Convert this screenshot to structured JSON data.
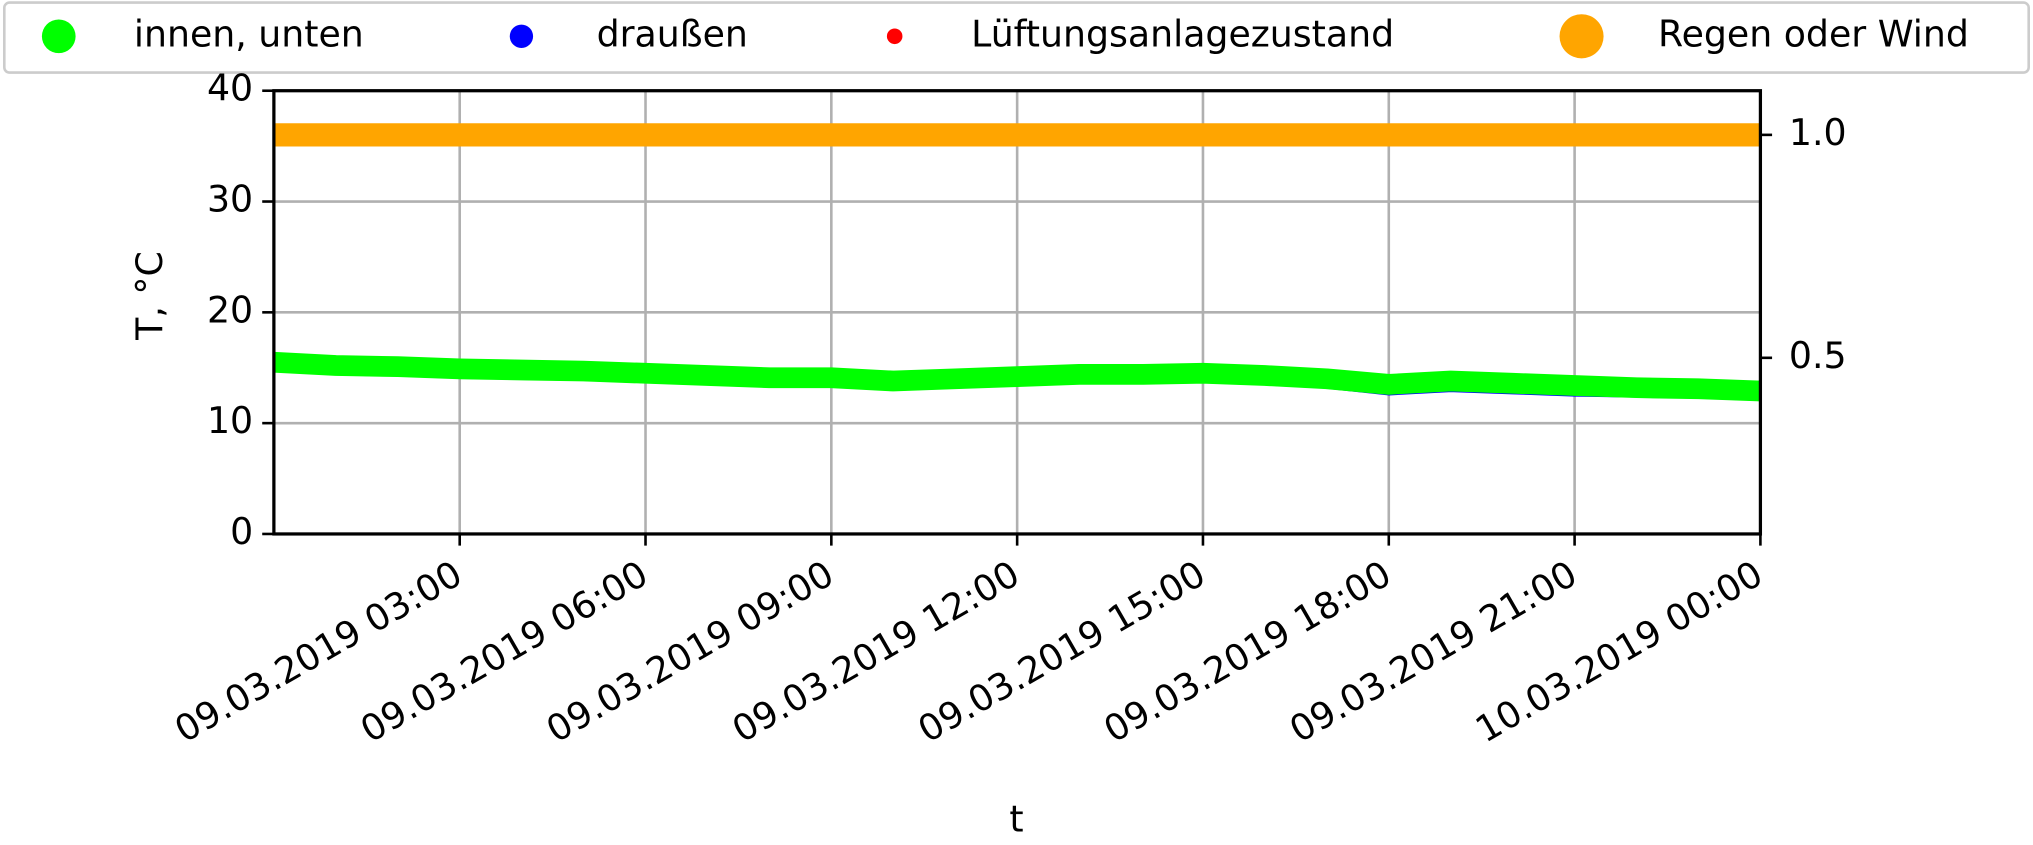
{
  "chart_data": {
    "type": "line",
    "legend": "top",
    "grid": true,
    "ylabel": "T, °C",
    "xlabel": "t",
    "x": [
      "09.03.2019 00:00",
      "09.03.2019 01:00",
      "09.03.2019 02:00",
      "09.03.2019 03:00",
      "09.03.2019 04:00",
      "09.03.2019 05:00",
      "09.03.2019 06:00",
      "09.03.2019 07:00",
      "09.03.2019 08:00",
      "09.03.2019 09:00",
      "09.03.2019 10:00",
      "09.03.2019 11:00",
      "09.03.2019 12:00",
      "09.03.2019 13:00",
      "09.03.2019 14:00",
      "09.03.2019 15:00",
      "09.03.2019 16:00",
      "09.03.2019 17:00",
      "09.03.2019 18:00",
      "09.03.2019 19:00",
      "09.03.2019 20:00",
      "09.03.2019 21:00",
      "09.03.2019 22:00",
      "09.03.2019 23:00",
      "10.03.2019 00:00"
    ],
    "series": [
      {
        "name": "innen, unten",
        "color": "#00ff00",
        "values": [
          15.5,
          15.2,
          15.1,
          14.9,
          14.8,
          14.7,
          14.5,
          14.3,
          14.1,
          14.1,
          13.8,
          14.0,
          14.2,
          14.4,
          14.4,
          14.5,
          14.3,
          14.0,
          13.5,
          13.8,
          13.6,
          13.4,
          13.2,
          13.1,
          12.9
        ]
      },
      {
        "name": "draußen",
        "color": "#0000ff",
        "values": [
          15.3,
          15.0,
          14.9,
          14.7,
          14.6,
          14.5,
          14.3,
          14.1,
          13.9,
          13.9,
          13.6,
          13.8,
          14.0,
          14.2,
          14.2,
          14.3,
          14.1,
          13.8,
          13.2,
          13.5,
          13.3,
          13.1,
          13.0,
          12.9,
          12.7
        ]
      },
      {
        "name": "Lüftungsanlagezustand",
        "color": "#ff0000",
        "values": [
          null,
          null,
          null,
          null,
          null,
          null,
          null,
          null,
          null,
          null,
          null,
          null,
          null,
          null,
          null,
          null,
          null,
          null,
          null,
          null,
          null,
          null,
          null,
          null,
          null
        ]
      },
      {
        "name": "Regen oder Wind",
        "color": "#ffa500",
        "axis": "y2",
        "values": [
          1,
          1,
          1,
          1,
          1,
          1,
          1,
          1,
          1,
          1,
          1,
          1,
          1,
          1,
          1,
          1,
          1,
          1,
          1,
          1,
          1,
          1,
          1,
          1,
          1
        ]
      }
    ],
    "xlim": [
      "09.03.2019 00:00",
      "10.03.2019 00:00"
    ],
    "xticks": [
      "09.03.2019 03:00",
      "09.03.2019 06:00",
      "09.03.2019 09:00",
      "09.03.2019 12:00",
      "09.03.2019 15:00",
      "09.03.2019 18:00",
      "09.03.2019 21:00",
      "10.03.2019 00:00"
    ],
    "ylim": [
      0,
      40
    ],
    "yticks": [
      0,
      10,
      20,
      30,
      40
    ],
    "y2lim": [
      0.105,
      1.099
    ],
    "y2ticks": [
      {
        "value": 0.5,
        "label": "0.5"
      },
      {
        "value": 1,
        "label": "1.0"
      }
    ]
  }
}
